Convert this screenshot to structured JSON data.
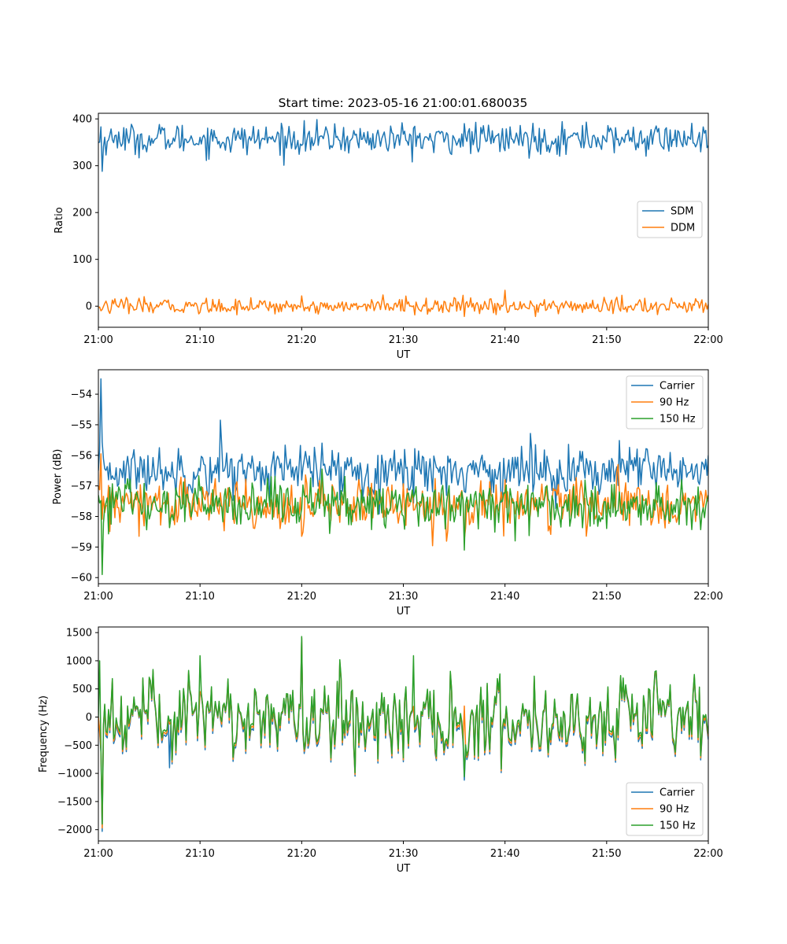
{
  "figure_title": "Start time: 2023-05-16 21:00:01.680035",
  "colors": {
    "blue": "#1f77b4",
    "orange": "#ff7f0e",
    "green": "#2ca02c"
  },
  "chart_data": [
    {
      "type": "line",
      "title": "Start time: 2023-05-16 21:00:01.680035",
      "xlabel": "UT",
      "ylabel": "Ratio",
      "xlim": [
        "21:00",
        "22:00"
      ],
      "xticks": [
        "21:00",
        "21:10",
        "21:20",
        "21:30",
        "21:40",
        "21:50",
        "22:00"
      ],
      "ylim": [
        -45,
        412
      ],
      "yticks": [
        0,
        100,
        200,
        300,
        400
      ],
      "legend": {
        "placement": "center-right",
        "entries": [
          "SDM",
          "DDM"
        ]
      },
      "series": [
        {
          "name": "SDM",
          "color": "#1f77b4",
          "mean": 357,
          "amplitude": 16,
          "points": [
            [
              "21:00",
              350
            ],
            [
              "21:00:30",
              340
            ],
            [
              "21:00:15",
              383
            ],
            [
              "21:00:20",
              288
            ],
            [
              "21:01",
              355
            ],
            [
              "21:02",
              372
            ],
            [
              "21:05",
              364
            ],
            [
              "21:06",
              388
            ],
            [
              "21:12",
              338
            ],
            [
              "21:33",
              328
            ],
            [
              "21:36",
              390
            ],
            [
              "21:40",
              332
            ],
            [
              "21:48",
              393
            ],
            [
              "22:00",
              343
            ]
          ]
        },
        {
          "name": "DDM",
          "color": "#ff7f0e",
          "mean": 0,
          "amplitude": 8,
          "points": [
            [
              "21:00",
              -3
            ],
            [
              "21:05",
              -12
            ],
            [
              "21:15",
              18
            ],
            [
              "21:20",
              22
            ],
            [
              "21:28",
              24
            ],
            [
              "21:36",
              -22
            ],
            [
              "21:40",
              34
            ],
            [
              "21:43",
              -22
            ],
            [
              "21:55",
              -18
            ],
            [
              "22:00",
              4
            ]
          ]
        }
      ]
    },
    {
      "type": "line",
      "xlabel": "UT",
      "ylabel": "Power (dB)",
      "xlim": [
        "21:00",
        "22:00"
      ],
      "xticks": [
        "21:00",
        "21:10",
        "21:20",
        "21:30",
        "21:40",
        "21:50",
        "22:00"
      ],
      "ylim": [
        -60.2,
        -53.2
      ],
      "yticks": [
        -54,
        -55,
        -56,
        -57,
        -58,
        -59,
        -60
      ],
      "legend": {
        "placement": "top-right",
        "entries": [
          "Carrier",
          "90 Hz",
          "150 Hz"
        ]
      },
      "series": [
        {
          "name": "Carrier",
          "color": "#1f77b4",
          "mean": -56.5,
          "amplitude": 0.4,
          "points": [
            [
              "21:00",
              -56.5
            ],
            [
              "21:00:15",
              -53.5
            ],
            [
              "21:01",
              -56.8
            ],
            [
              "21:12",
              -54.85
            ],
            [
              "21:22",
              -55.6
            ],
            [
              "21:43",
              -55.65
            ],
            [
              "21:54",
              -55.8
            ],
            [
              "22:00",
              -56.0
            ]
          ]
        },
        {
          "name": "90 Hz",
          "color": "#ff7f0e",
          "mean": -57.6,
          "amplitude": 0.4,
          "points": [
            [
              "21:00",
              -57.0
            ],
            [
              "21:00:15",
              -55.95
            ],
            [
              "21:04",
              -58.65
            ],
            [
              "21:20",
              -58.65
            ],
            [
              "21:22",
              -56.5
            ],
            [
              "21:36",
              -58.75
            ],
            [
              "21:40",
              -56.8
            ],
            [
              "22:00",
              -57.5
            ]
          ]
        },
        {
          "name": "150 Hz",
          "color": "#2ca02c",
          "mean": -57.6,
          "amplitude": 0.4,
          "points": [
            [
              "21:00",
              -57.3
            ],
            [
              "21:00:20",
              -59.9
            ],
            [
              "21:03",
              -57.1
            ],
            [
              "21:17",
              -56.7
            ],
            [
              "21:36",
              -59.1
            ],
            [
              "21:41",
              -58.8
            ],
            [
              "22:00",
              -57.3
            ]
          ]
        }
      ]
    },
    {
      "type": "line",
      "xlabel": "UT",
      "ylabel": "Frequency (Hz)",
      "xlim": [
        "21:00",
        "22:00"
      ],
      "xticks": [
        "21:00",
        "21:10",
        "21:20",
        "21:30",
        "21:40",
        "21:50",
        "22:00"
      ],
      "ylim": [
        -2200,
        1600
      ],
      "yticks": [
        1500,
        1000,
        500,
        0,
        -500,
        -1000,
        -1500,
        -2000
      ],
      "legend": {
        "placement": "bottom-right",
        "entries": [
          "Carrier",
          "90 Hz",
          "150 Hz"
        ]
      },
      "series": [
        {
          "name": "Carrier",
          "color": "#1f77b4",
          "offset": -100,
          "points": [
            [
              "21:00",
              0
            ],
            [
              "21:00:20",
              -2030
            ],
            [
              "21:07",
              -900
            ],
            [
              "21:20",
              1400
            ],
            [
              "21:36",
              -1120
            ],
            [
              "22:00",
              -400
            ]
          ]
        },
        {
          "name": "90 Hz",
          "color": "#ff7f0e",
          "offset": -50,
          "points": [
            [
              "21:00",
              0
            ],
            [
              "21:00:20",
              -1970
            ],
            [
              "21:20",
              1410
            ],
            [
              "22:00",
              -350
            ]
          ]
        },
        {
          "name": "150 Hz",
          "color": "#2ca02c",
          "offset": 0,
          "points": [
            [
              "21:00",
              0
            ],
            [
              "21:00:10",
              1000
            ],
            [
              "21:00:20",
              -1900
            ],
            [
              "21:10",
              1090
            ],
            [
              "21:20",
              1430
            ],
            [
              "21:31",
              1090
            ],
            [
              "21:36",
              -1060
            ],
            [
              "22:00",
              -300
            ]
          ]
        }
      ]
    }
  ]
}
